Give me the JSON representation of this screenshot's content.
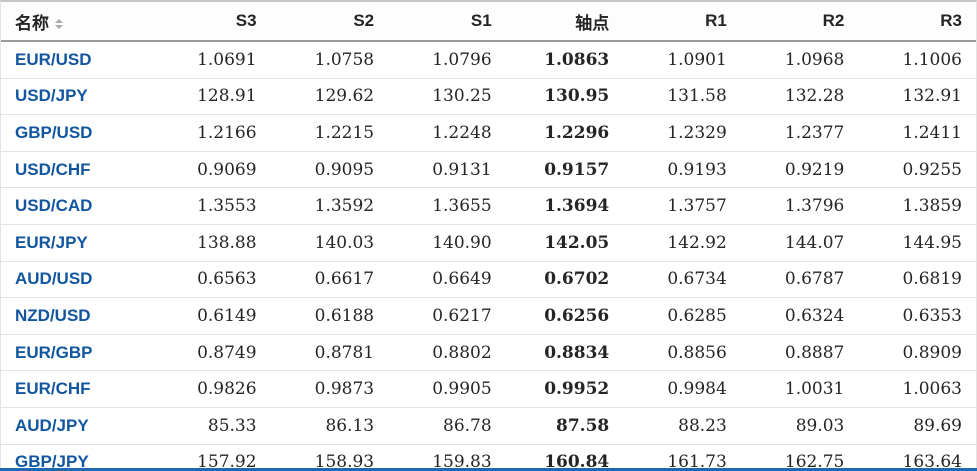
{
  "table": {
    "headers": [
      {
        "key": "name",
        "label": "名称"
      },
      {
        "key": "s3",
        "label": "S3"
      },
      {
        "key": "s2",
        "label": "S2"
      },
      {
        "key": "s1",
        "label": "S1"
      },
      {
        "key": "pivot",
        "label": "轴点"
      },
      {
        "key": "r1",
        "label": "R1"
      },
      {
        "key": "r2",
        "label": "R2"
      },
      {
        "key": "r3",
        "label": "R3"
      }
    ],
    "rows": [
      {
        "name": "EUR/USD",
        "s3": "1.0691",
        "s2": "1.0758",
        "s1": "1.0796",
        "pivot": "1.0863",
        "r1": "1.0901",
        "r2": "1.0968",
        "r3": "1.1006"
      },
      {
        "name": "USD/JPY",
        "s3": "128.91",
        "s2": "129.62",
        "s1": "130.25",
        "pivot": "130.95",
        "r1": "131.58",
        "r2": "132.28",
        "r3": "132.91"
      },
      {
        "name": "GBP/USD",
        "s3": "1.2166",
        "s2": "1.2215",
        "s1": "1.2248",
        "pivot": "1.2296",
        "r1": "1.2329",
        "r2": "1.2377",
        "r3": "1.2411"
      },
      {
        "name": "USD/CHF",
        "s3": "0.9069",
        "s2": "0.9095",
        "s1": "0.9131",
        "pivot": "0.9157",
        "r1": "0.9193",
        "r2": "0.9219",
        "r3": "0.9255"
      },
      {
        "name": "USD/CAD",
        "s3": "1.3553",
        "s2": "1.3592",
        "s1": "1.3655",
        "pivot": "1.3694",
        "r1": "1.3757",
        "r2": "1.3796",
        "r3": "1.3859"
      },
      {
        "name": "EUR/JPY",
        "s3": "138.88",
        "s2": "140.03",
        "s1": "140.90",
        "pivot": "142.05",
        "r1": "142.92",
        "r2": "144.07",
        "r3": "144.95"
      },
      {
        "name": "AUD/USD",
        "s3": "0.6563",
        "s2": "0.6617",
        "s1": "0.6649",
        "pivot": "0.6702",
        "r1": "0.6734",
        "r2": "0.6787",
        "r3": "0.6819"
      },
      {
        "name": "NZD/USD",
        "s3": "0.6149",
        "s2": "0.6188",
        "s1": "0.6217",
        "pivot": "0.6256",
        "r1": "0.6285",
        "r2": "0.6324",
        "r3": "0.6353"
      },
      {
        "name": "EUR/GBP",
        "s3": "0.8749",
        "s2": "0.8781",
        "s1": "0.8802",
        "pivot": "0.8834",
        "r1": "0.8856",
        "r2": "0.8887",
        "r3": "0.8909"
      },
      {
        "name": "EUR/CHF",
        "s3": "0.9826",
        "s2": "0.9873",
        "s1": "0.9905",
        "pivot": "0.9952",
        "r1": "0.9984",
        "r2": "1.0031",
        "r3": "1.0063"
      },
      {
        "name": "AUD/JPY",
        "s3": "85.33",
        "s2": "86.13",
        "s1": "86.78",
        "pivot": "87.58",
        "r1": "88.23",
        "r2": "89.03",
        "r3": "89.69"
      },
      {
        "name": "GBP/JPY",
        "s3": "157.92",
        "s2": "158.93",
        "s1": "159.83",
        "pivot": "160.84",
        "r1": "161.73",
        "r2": "162.75",
        "r3": "163.64"
      }
    ]
  },
  "colors": {
    "link_blue": "#1256a0",
    "text_dark": "#232526",
    "header_border": "#9b9b9e",
    "row_border": "#e3e3e3",
    "bottom_bar_blue": "#1d6ab2",
    "sort_icon_gray": "#a9a9a9"
  }
}
